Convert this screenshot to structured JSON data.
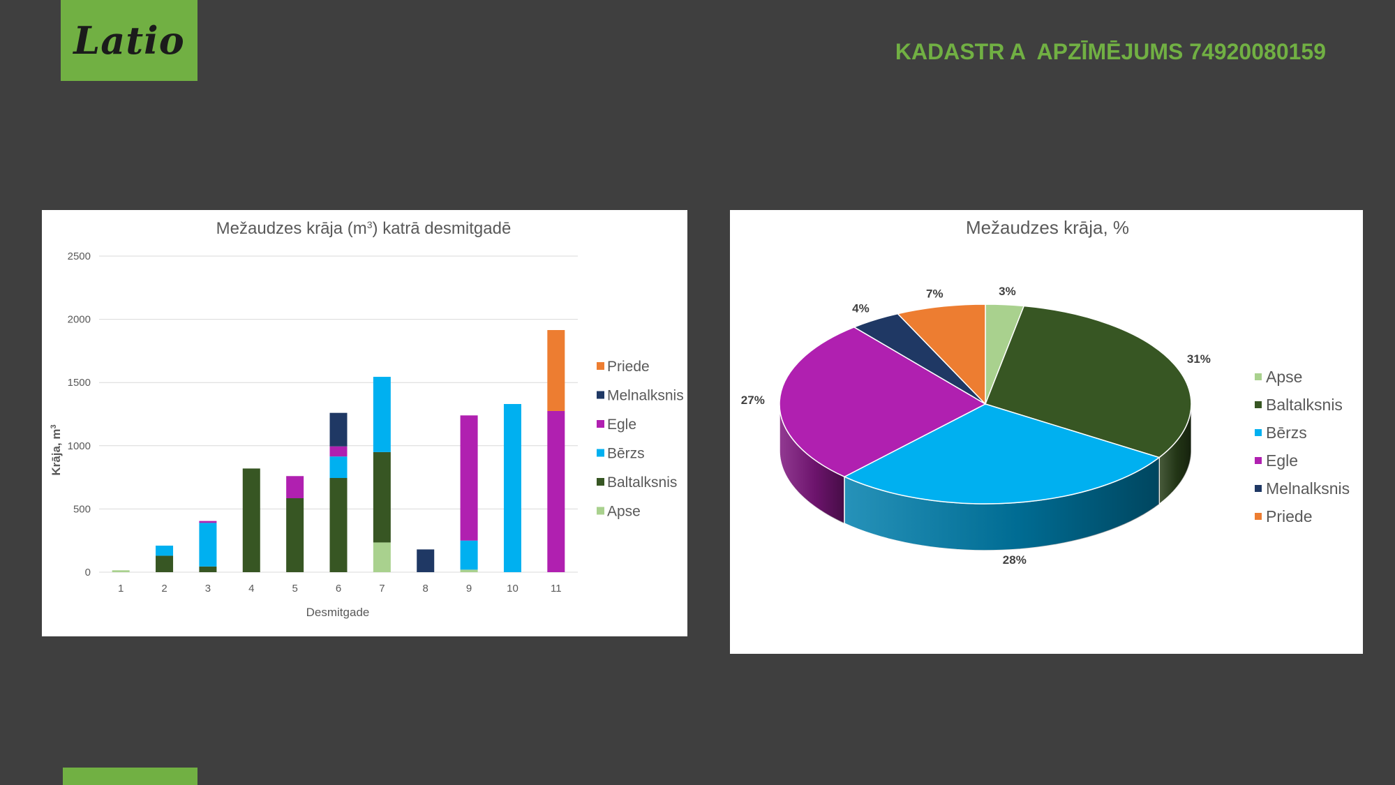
{
  "logo": {
    "text": "Latio"
  },
  "header": {
    "title": "KADASTR A  APZĪMĒJUMS 74920080159"
  },
  "colors": {
    "accent": "#71b043",
    "Apse": "#a9d18e",
    "Baltalksnis": "#375623",
    "Bērzs": "#00b0f0",
    "Egle": "#b020b0",
    "Melnalksnis": "#1f3864",
    "Priede": "#ed7d31"
  },
  "chart_data": [
    {
      "type": "bar",
      "stacked": true,
      "title_main": "Mežaudzes krāja (m",
      "title_sup": "3",
      "title_rest": ") katrā desmitgadē",
      "xlabel": "Desmitgade",
      "ylabel_main": "Krāja, m",
      "ylabel_sup": "3",
      "ylim": [
        0,
        2500
      ],
      "yticks": [
        "0",
        "500",
        "1000",
        "1500",
        "2000",
        "2500"
      ],
      "grid": true,
      "legend_position": "right",
      "categories": [
        "1",
        "2",
        "3",
        "4",
        "5",
        "6",
        "7",
        "8",
        "9",
        "10",
        "11"
      ],
      "series": [
        {
          "name": "Apse",
          "values": [
            15,
            0,
            0,
            0,
            0,
            0,
            235,
            0,
            20,
            0,
            0
          ]
        },
        {
          "name": "Baltalksnis",
          "values": [
            0,
            130,
            45,
            820,
            585,
            745,
            715,
            0,
            0,
            0,
            0
          ]
        },
        {
          "name": "Bērzs",
          "values": [
            0,
            80,
            345,
            0,
            0,
            170,
            595,
            0,
            230,
            1330,
            0
          ]
        },
        {
          "name": "Egle",
          "values": [
            0,
            0,
            15,
            0,
            175,
            80,
            0,
            0,
            990,
            0,
            1275
          ]
        },
        {
          "name": "Melnalksnis",
          "values": [
            0,
            0,
            0,
            0,
            0,
            265,
            0,
            180,
            0,
            0,
            0
          ]
        },
        {
          "name": "Priede",
          "values": [
            0,
            0,
            0,
            0,
            0,
            0,
            0,
            0,
            0,
            0,
            640
          ]
        }
      ],
      "legend_order": [
        "Priede",
        "Melnalksnis",
        "Egle",
        "Bērzs",
        "Baltalksnis",
        "Apse"
      ]
    },
    {
      "type": "pie",
      "style": "3d",
      "title": "Mežaudzes krāja, %",
      "legend_position": "right",
      "slices": [
        {
          "name": "Apse",
          "value": 3,
          "label": "3%"
        },
        {
          "name": "Baltalksnis",
          "value": 31,
          "label": "31%"
        },
        {
          "name": "Bērzs",
          "value": 28,
          "label": "28%"
        },
        {
          "name": "Egle",
          "value": 27,
          "label": "27%"
        },
        {
          "name": "Melnalksnis",
          "value": 4,
          "label": "4%"
        },
        {
          "name": "Priede",
          "value": 7,
          "label": "7%"
        }
      ]
    }
  ]
}
